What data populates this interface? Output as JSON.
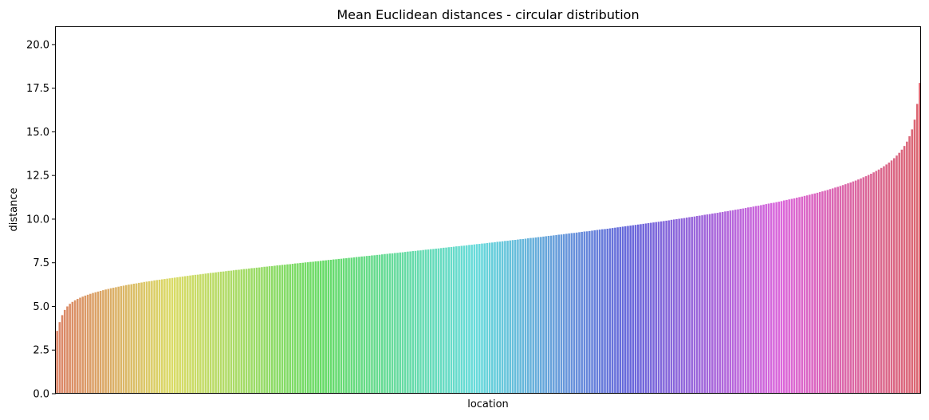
{
  "chart_data": {
    "type": "bar",
    "title": "Mean Euclidean distances - circular distribution",
    "xlabel": "location",
    "ylabel": "distance",
    "ylim": [
      0,
      21
    ],
    "yticks": [
      "0.0",
      "2.5",
      "5.0",
      "7.5",
      "10.0",
      "12.5",
      "15.0",
      "17.5",
      "20.0"
    ],
    "ytick_values": [
      0,
      2.5,
      5,
      7.5,
      10,
      12.5,
      15,
      17.5,
      20
    ],
    "grid": false,
    "legend": "none",
    "xticks_visible": false,
    "values": [
      3.6,
      4.1,
      4.5,
      4.8,
      5.0,
      5.15,
      5.26,
      5.35,
      5.43,
      5.5,
      5.56,
      5.62,
      5.67,
      5.72,
      5.77,
      5.81,
      5.85,
      5.89,
      5.93,
      5.97,
      6.0,
      6.04,
      6.07,
      6.1,
      6.13,
      6.16,
      6.19,
      6.22,
      6.25,
      6.27,
      6.3,
      6.32,
      6.35,
      6.37,
      6.4,
      6.42,
      6.44,
      6.46,
      6.49,
      6.51,
      6.53,
      6.55,
      6.57,
      6.59,
      6.61,
      6.63,
      6.65,
      6.67,
      6.69,
      6.71,
      6.73,
      6.75,
      6.77,
      6.79,
      6.81,
      6.82,
      6.84,
      6.86,
      6.88,
      6.9,
      6.92,
      6.93,
      6.95,
      6.97,
      6.99,
      7.0,
      7.02,
      7.04,
      7.05,
      7.07,
      7.09,
      7.1,
      7.12,
      7.14,
      7.15,
      7.17,
      7.19,
      7.2,
      7.22,
      7.23,
      7.25,
      7.27,
      7.28,
      7.3,
      7.31,
      7.33,
      7.35,
      7.36,
      7.38,
      7.39,
      7.41,
      7.42,
      7.44,
      7.46,
      7.47,
      7.49,
      7.5,
      7.52,
      7.53,
      7.55,
      7.56,
      7.58,
      7.59,
      7.61,
      7.63,
      7.64,
      7.66,
      7.67,
      7.69,
      7.7,
      7.72,
      7.73,
      7.75,
      7.76,
      7.78,
      7.79,
      7.81,
      7.83,
      7.84,
      7.86,
      7.87,
      7.89,
      7.9,
      7.92,
      7.93,
      7.95,
      7.96,
      7.98,
      8.0,
      8.01,
      8.03,
      8.04,
      8.06,
      8.07,
      8.09,
      8.1,
      8.12,
      8.14,
      8.15,
      8.17,
      8.18,
      8.2,
      8.21,
      8.23,
      8.25,
      8.26,
      8.28,
      8.29,
      8.31,
      8.32,
      8.34,
      8.36,
      8.37,
      8.39,
      8.4,
      8.42,
      8.44,
      8.45,
      8.47,
      8.48,
      8.5,
      8.52,
      8.53,
      8.55,
      8.57,
      8.58,
      8.6,
      8.61,
      8.63,
      8.65,
      8.66,
      8.68,
      8.7,
      8.71,
      8.73,
      8.75,
      8.76,
      8.78,
      8.8,
      8.81,
      8.83,
      8.85,
      8.86,
      8.88,
      8.9,
      8.92,
      8.93,
      8.95,
      8.97,
      8.98,
      9.0,
      9.02,
      9.04,
      9.05,
      9.07,
      9.09,
      9.11,
      9.12,
      9.14,
      9.16,
      9.18,
      9.2,
      9.21,
      9.23,
      9.25,
      9.27,
      9.29,
      9.3,
      9.32,
      9.34,
      9.36,
      9.38,
      9.4,
      9.42,
      9.43,
      9.45,
      9.47,
      9.49,
      9.51,
      9.53,
      9.55,
      9.57,
      9.59,
      9.61,
      9.63,
      9.65,
      9.67,
      9.69,
      9.71,
      9.73,
      9.75,
      9.77,
      9.79,
      9.81,
      9.83,
      9.85,
      9.87,
      9.89,
      9.91,
      9.93,
      9.96,
      9.98,
      10.0,
      10.02,
      10.04,
      10.06,
      10.09,
      10.11,
      10.13,
      10.15,
      10.18,
      10.2,
      10.22,
      10.25,
      10.27,
      10.29,
      10.32,
      10.34,
      10.36,
      10.39,
      10.41,
      10.44,
      10.46,
      10.49,
      10.51,
      10.54,
      10.56,
      10.59,
      10.61,
      10.64,
      10.67,
      10.69,
      10.72,
      10.75,
      10.77,
      10.8,
      10.83,
      10.86,
      10.89,
      10.92,
      10.94,
      10.97,
      11.0,
      11.03,
      11.07,
      11.1,
      11.13,
      11.16,
      11.19,
      11.23,
      11.26,
      11.29,
      11.33,
      11.36,
      11.4,
      11.44,
      11.47,
      11.51,
      11.55,
      11.59,
      11.63,
      11.67,
      11.72,
      11.76,
      11.81,
      11.85,
      11.9,
      11.95,
      12.0,
      12.05,
      12.1,
      12.16,
      12.21,
      12.27,
      12.33,
      12.4,
      12.46,
      12.53,
      12.6,
      12.68,
      12.76,
      12.84,
      12.93,
      13.03,
      13.13,
      13.24,
      13.36,
      13.49,
      13.64,
      13.8,
      13.98,
      14.19,
      14.44,
      14.75,
      15.14,
      15.7,
      16.6,
      17.8
    ]
  }
}
